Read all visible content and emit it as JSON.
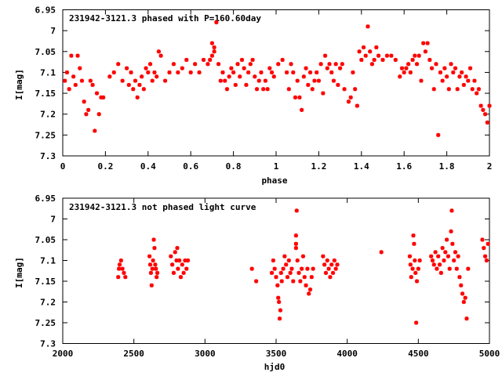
{
  "chart_data": [
    {
      "type": "scatter",
      "title": "231942-3121.3 phased with P=160.60day",
      "xlabel": "phase",
      "ylabel": "I[mag]",
      "xlim": [
        0,
        2
      ],
      "ylim": [
        6.95,
        7.3
      ],
      "y_inverted": true,
      "x_ticks": [
        "0",
        "0.2",
        "0.4",
        "0.6",
        "0.8",
        "1",
        "1.2",
        "1.4",
        "1.6",
        "1.8",
        "2"
      ],
      "y_ticks": [
        "6.95",
        "7",
        "7.05",
        "7.1",
        "7.15",
        "7.2",
        "7.25",
        "7.3"
      ],
      "marker_color": "#ff0000",
      "grid": false,
      "points": [
        [
          0.01,
          7.12
        ],
        [
          0.02,
          7.1
        ],
        [
          0.03,
          7.14
        ],
        [
          0.04,
          7.06
        ],
        [
          0.05,
          7.11
        ],
        [
          0.06,
          7.13
        ],
        [
          0.07,
          7.06
        ],
        [
          0.08,
          7.09
        ],
        [
          0.09,
          7.12
        ],
        [
          0.1,
          7.17
        ],
        [
          0.11,
          7.2
        ],
        [
          0.12,
          7.19
        ],
        [
          0.13,
          7.12
        ],
        [
          0.14,
          7.13
        ],
        [
          0.15,
          7.24
        ],
        [
          0.16,
          7.15
        ],
        [
          0.17,
          7.2
        ],
        [
          0.18,
          7.16
        ],
        [
          0.19,
          7.16
        ],
        [
          0.22,
          7.11
        ],
        [
          0.24,
          7.1
        ],
        [
          0.26,
          7.08
        ],
        [
          0.28,
          7.12
        ],
        [
          0.3,
          7.09
        ],
        [
          0.31,
          7.13
        ],
        [
          0.32,
          7.1
        ],
        [
          0.33,
          7.14
        ],
        [
          0.34,
          7.12
        ],
        [
          0.35,
          7.16
        ],
        [
          0.36,
          7.13
        ],
        [
          0.37,
          7.11
        ],
        [
          0.38,
          7.14
        ],
        [
          0.39,
          7.09
        ],
        [
          0.4,
          7.1
        ],
        [
          0.41,
          7.08
        ],
        [
          0.42,
          7.12
        ],
        [
          0.43,
          7.1
        ],
        [
          0.44,
          7.11
        ],
        [
          0.45,
          7.05
        ],
        [
          0.46,
          7.06
        ],
        [
          0.48,
          7.12
        ],
        [
          0.5,
          7.1
        ],
        [
          0.52,
          7.08
        ],
        [
          0.54,
          7.1
        ],
        [
          0.56,
          7.09
        ],
        [
          0.58,
          7.07
        ],
        [
          0.6,
          7.1
        ],
        [
          0.62,
          7.08
        ],
        [
          0.64,
          7.1
        ],
        [
          0.66,
          7.07
        ],
        [
          0.68,
          7.08
        ],
        [
          0.69,
          7.07
        ],
        [
          0.7,
          7.06
        ],
        [
          0.7,
          7.03
        ],
        [
          0.71,
          7.04
        ],
        [
          0.71,
          7.05
        ],
        [
          0.72,
          6.98
        ],
        [
          0.73,
          7.08
        ],
        [
          0.74,
          7.12
        ],
        [
          0.75,
          7.1
        ],
        [
          0.76,
          7.12
        ],
        [
          0.77,
          7.14
        ],
        [
          0.78,
          7.11
        ],
        [
          0.79,
          7.09
        ],
        [
          0.8,
          7.1
        ],
        [
          0.81,
          7.13
        ],
        [
          0.82,
          7.08
        ],
        [
          0.83,
          7.11
        ],
        [
          0.84,
          7.07
        ],
        [
          0.85,
          7.09
        ],
        [
          0.86,
          7.13
        ],
        [
          0.87,
          7.1
        ],
        [
          0.88,
          7.08
        ],
        [
          0.89,
          7.07
        ],
        [
          0.9,
          7.11
        ],
        [
          0.91,
          7.14
        ],
        [
          0.92,
          7.12
        ],
        [
          0.93,
          7.1
        ],
        [
          0.94,
          7.14
        ],
        [
          0.95,
          7.12
        ],
        [
          0.96,
          7.14
        ],
        [
          0.97,
          7.09
        ],
        [
          0.98,
          7.1
        ],
        [
          0.99,
          7.11
        ],
        [
          1.01,
          7.08
        ],
        [
          1.03,
          7.07
        ],
        [
          1.05,
          7.1
        ],
        [
          1.06,
          7.14
        ],
        [
          1.07,
          7.08
        ],
        [
          1.08,
          7.1
        ],
        [
          1.09,
          7.16
        ],
        [
          1.1,
          7.12
        ],
        [
          1.11,
          7.16
        ],
        [
          1.12,
          7.19
        ],
        [
          1.13,
          7.11
        ],
        [
          1.14,
          7.09
        ],
        [
          1.15,
          7.13
        ],
        [
          1.16,
          7.1
        ],
        [
          1.17,
          7.14
        ],
        [
          1.18,
          7.12
        ],
        [
          1.19,
          7.1
        ],
        [
          1.2,
          7.12
        ],
        [
          1.21,
          7.08
        ],
        [
          1.22,
          7.15
        ],
        [
          1.23,
          7.06
        ],
        [
          1.24,
          7.09
        ],
        [
          1.25,
          7.08
        ],
        [
          1.26,
          7.1
        ],
        [
          1.27,
          7.12
        ],
        [
          1.28,
          7.08
        ],
        [
          1.29,
          7.13
        ],
        [
          1.3,
          7.09
        ],
        [
          1.31,
          7.08
        ],
        [
          1.32,
          7.14
        ],
        [
          1.34,
          7.17
        ],
        [
          1.35,
          7.16
        ],
        [
          1.36,
          7.1
        ],
        [
          1.37,
          7.14
        ],
        [
          1.38,
          7.18
        ],
        [
          1.39,
          7.05
        ],
        [
          1.4,
          7.07
        ],
        [
          1.41,
          7.04
        ],
        [
          1.42,
          7.06
        ],
        [
          1.43,
          6.99
        ],
        [
          1.44,
          7.05
        ],
        [
          1.45,
          7.08
        ],
        [
          1.46,
          7.07
        ],
        [
          1.47,
          7.04
        ],
        [
          1.48,
          7.06
        ],
        [
          1.5,
          7.07
        ],
        [
          1.52,
          7.06
        ],
        [
          1.54,
          7.06
        ],
        [
          1.56,
          7.07
        ],
        [
          1.58,
          7.11
        ],
        [
          1.59,
          7.09
        ],
        [
          1.6,
          7.1
        ],
        [
          1.61,
          7.09
        ],
        [
          1.62,
          7.08
        ],
        [
          1.63,
          7.1
        ],
        [
          1.64,
          7.07
        ],
        [
          1.65,
          7.06
        ],
        [
          1.66,
          7.08
        ],
        [
          1.67,
          7.06
        ],
        [
          1.68,
          7.12
        ],
        [
          1.69,
          7.03
        ],
        [
          1.7,
          7.05
        ],
        [
          1.71,
          7.03
        ],
        [
          1.72,
          7.07
        ],
        [
          1.73,
          7.09
        ],
        [
          1.74,
          7.14
        ],
        [
          1.75,
          7.08
        ],
        [
          1.76,
          7.25
        ],
        [
          1.77,
          7.1
        ],
        [
          1.78,
          7.12
        ],
        [
          1.79,
          7.09
        ],
        [
          1.8,
          7.11
        ],
        [
          1.81,
          7.14
        ],
        [
          1.82,
          7.08
        ],
        [
          1.83,
          7.1
        ],
        [
          1.84,
          7.09
        ],
        [
          1.85,
          7.14
        ],
        [
          1.86,
          7.11
        ],
        [
          1.87,
          7.1
        ],
        [
          1.88,
          7.13
        ],
        [
          1.89,
          7.11
        ],
        [
          1.9,
          7.12
        ],
        [
          1.91,
          7.09
        ],
        [
          1.92,
          7.14
        ],
        [
          1.93,
          7.12
        ],
        [
          1.94,
          7.15
        ],
        [
          1.95,
          7.14
        ],
        [
          1.96,
          7.18
        ],
        [
          1.97,
          7.19
        ],
        [
          1.98,
          7.2
        ],
        [
          1.99,
          7.22
        ],
        [
          2.0,
          7.18
        ]
      ]
    },
    {
      "type": "scatter",
      "title": "231942-3121.3 not phased light curve",
      "xlabel": "hjd0",
      "ylabel": "I[mag]",
      "xlim": [
        2000,
        5000
      ],
      "ylim": [
        6.95,
        7.3
      ],
      "y_inverted": true,
      "x_ticks": [
        "2000",
        "2500",
        "3000",
        "3500",
        "4000",
        "4500",
        "5000"
      ],
      "y_ticks": [
        "6.95",
        "7",
        "7.05",
        "7.1",
        "7.15",
        "7.2",
        "7.25",
        "7.3"
      ],
      "marker_color": "#ff0000",
      "grid": false,
      "points": [
        [
          2390,
          7.14
        ],
        [
          2395,
          7.12
        ],
        [
          2400,
          7.11
        ],
        [
          2410,
          7.1
        ],
        [
          2420,
          7.12
        ],
        [
          2430,
          7.13
        ],
        [
          2440,
          7.14
        ],
        [
          2610,
          7.09
        ],
        [
          2615,
          7.11
        ],
        [
          2620,
          7.13
        ],
        [
          2625,
          7.16
        ],
        [
          2630,
          7.12
        ],
        [
          2635,
          7.1
        ],
        [
          2640,
          7.05
        ],
        [
          2645,
          7.07
        ],
        [
          2650,
          7.11
        ],
        [
          2655,
          7.12
        ],
        [
          2660,
          7.14
        ],
        [
          2665,
          7.13
        ],
        [
          2760,
          7.09
        ],
        [
          2770,
          7.11
        ],
        [
          2780,
          7.13
        ],
        [
          2790,
          7.08
        ],
        [
          2800,
          7.1
        ],
        [
          2805,
          7.07
        ],
        [
          2810,
          7.12
        ],
        [
          2820,
          7.1
        ],
        [
          2830,
          7.14
        ],
        [
          2840,
          7.11
        ],
        [
          2850,
          7.13
        ],
        [
          2860,
          7.1
        ],
        [
          2870,
          7.12
        ],
        [
          2880,
          7.1
        ],
        [
          3330,
          7.12
        ],
        [
          3360,
          7.15
        ],
        [
          3470,
          7.13
        ],
        [
          3480,
          7.1
        ],
        [
          3490,
          7.12
        ],
        [
          3500,
          7.14
        ],
        [
          3510,
          7.16
        ],
        [
          3515,
          7.19
        ],
        [
          3520,
          7.2
        ],
        [
          3525,
          7.24
        ],
        [
          3530,
          7.22
        ],
        [
          3535,
          7.13
        ],
        [
          3540,
          7.15
        ],
        [
          3550,
          7.12
        ],
        [
          3560,
          7.09
        ],
        [
          3570,
          7.11
        ],
        [
          3580,
          7.14
        ],
        [
          3590,
          7.1
        ],
        [
          3600,
          7.13
        ],
        [
          3610,
          7.12
        ],
        [
          3620,
          7.15
        ],
        [
          3640,
          7.04
        ],
        [
          3640,
          7.06
        ],
        [
          3640,
          7.07
        ],
        [
          3645,
          6.98
        ],
        [
          3650,
          7.1
        ],
        [
          3660,
          7.13
        ],
        [
          3670,
          7.15
        ],
        [
          3680,
          7.12
        ],
        [
          3690,
          7.09
        ],
        [
          3700,
          7.14
        ],
        [
          3710,
          7.16
        ],
        [
          3720,
          7.12
        ],
        [
          3730,
          7.18
        ],
        [
          3740,
          7.17
        ],
        [
          3750,
          7.14
        ],
        [
          3760,
          7.12
        ],
        [
          3830,
          7.09
        ],
        [
          3840,
          7.11
        ],
        [
          3850,
          7.13
        ],
        [
          3860,
          7.1
        ],
        [
          3870,
          7.12
        ],
        [
          3880,
          7.14
        ],
        [
          3890,
          7.11
        ],
        [
          3900,
          7.13
        ],
        [
          3910,
          7.1
        ],
        [
          3920,
          7.12
        ],
        [
          3930,
          7.11
        ],
        [
          4240,
          7.08
        ],
        [
          4440,
          7.09
        ],
        [
          4445,
          7.11
        ],
        [
          4450,
          7.14
        ],
        [
          4460,
          7.12
        ],
        [
          4465,
          7.04
        ],
        [
          4470,
          7.06
        ],
        [
          4475,
          7.1
        ],
        [
          4480,
          7.13
        ],
        [
          4485,
          7.25
        ],
        [
          4490,
          7.15
        ],
        [
          4500,
          7.12
        ],
        [
          4510,
          7.1
        ],
        [
          4590,
          7.09
        ],
        [
          4600,
          7.1
        ],
        [
          4610,
          7.11
        ],
        [
          4620,
          7.08
        ],
        [
          4630,
          7.12
        ],
        [
          4640,
          7.09
        ],
        [
          4650,
          7.11
        ],
        [
          4660,
          7.13
        ],
        [
          4670,
          7.07
        ],
        [
          4680,
          7.1
        ],
        [
          4690,
          7.08
        ],
        [
          4700,
          7.05
        ],
        [
          4710,
          7.09
        ],
        [
          4720,
          7.12
        ],
        [
          4730,
          7.03
        ],
        [
          4735,
          6.98
        ],
        [
          4740,
          7.06
        ],
        [
          4750,
          7.1
        ],
        [
          4760,
          7.08
        ],
        [
          4770,
          7.12
        ],
        [
          4780,
          7.09
        ],
        [
          4790,
          7.14
        ],
        [
          4800,
          7.16
        ],
        [
          4810,
          7.18
        ],
        [
          4820,
          7.2
        ],
        [
          4830,
          7.19
        ],
        [
          4840,
          7.24
        ],
        [
          4850,
          7.12
        ],
        [
          4950,
          7.05
        ],
        [
          4960,
          7.07
        ],
        [
          4970,
          7.09
        ],
        [
          4980,
          7.1
        ],
        [
          4990,
          7.06
        ]
      ]
    }
  ]
}
